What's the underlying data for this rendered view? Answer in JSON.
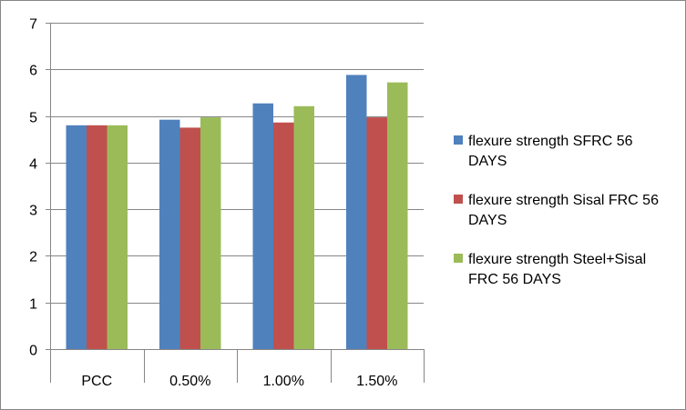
{
  "chart_data": {
    "type": "bar",
    "title": "",
    "xlabel": "",
    "ylabel": "",
    "categories": [
      "PCC",
      "0.50%",
      "1.00%",
      "1.50%"
    ],
    "ylim": [
      0,
      7
    ],
    "yticks": [
      0,
      1,
      2,
      3,
      4,
      5,
      6,
      7
    ],
    "grid": "horizontal major gridlines",
    "legend_position": "right",
    "series": [
      {
        "name": "flexure strength SFRC 56 DAYS",
        "color": "#4F81BD",
        "values": [
          4.8,
          4.92,
          5.27,
          5.88
        ]
      },
      {
        "name": "flexure strength Sisal FRC 56 DAYS",
        "color": "#C0504D",
        "values": [
          4.8,
          4.75,
          4.86,
          4.97
        ]
      },
      {
        "name": "flexure strength Steel+Sisal FRC 56 DAYS",
        "color": "#9BBB59",
        "values": [
          4.8,
          4.97,
          5.21,
          5.72
        ]
      }
    ]
  }
}
